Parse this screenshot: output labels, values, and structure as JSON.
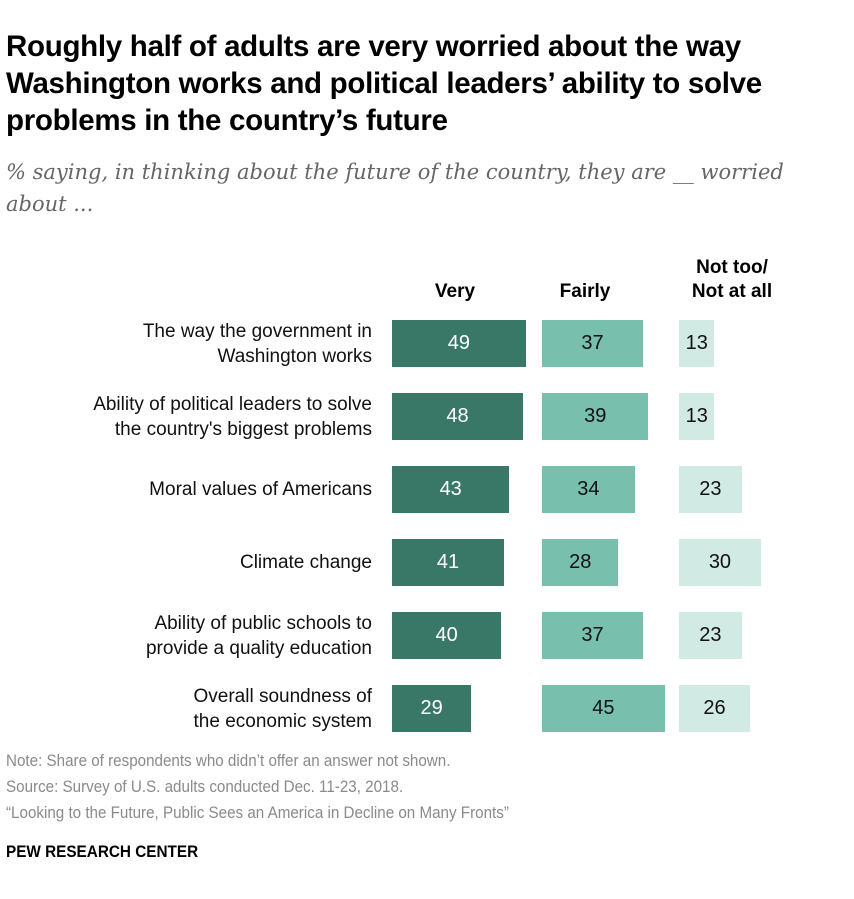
{
  "chart_data": {
    "type": "bar",
    "title": "Roughly half of adults are very worried about the way Washington works and political leaders’ ability to solve problems in the country’s future",
    "subtitle": "% saying, in thinking about the future of the country, they are __ worried about ...",
    "categories": [
      [
        "The way the government in",
        "Washington works"
      ],
      [
        "Ability of political leaders to solve",
        "the country's biggest problems"
      ],
      [
        "Moral values of Americans"
      ],
      [
        "Climate change"
      ],
      [
        "Ability of public schools to",
        "provide a quality education"
      ],
      [
        "Overall soundness of",
        "the economic system"
      ]
    ],
    "series": [
      {
        "name": "Very",
        "name_lines": [
          "Very"
        ],
        "values": [
          49,
          48,
          43,
          41,
          40,
          29
        ],
        "color": "#397867",
        "text_color": "#ffffff"
      },
      {
        "name": "Fairly",
        "name_lines": [
          "Fairly"
        ],
        "values": [
          37,
          39,
          34,
          28,
          37,
          45
        ],
        "color": "#78bfae",
        "text_color": "#111111"
      },
      {
        "name": "Not too/ Not at all",
        "name_lines": [
          "Not too/",
          "Not at all"
        ],
        "values": [
          13,
          13,
          23,
          30,
          23,
          26
        ],
        "color": "#d2eae4",
        "text_color": "#111111"
      }
    ]
  },
  "footer": {
    "note": "Note: Share of respondents who didn’t offer an answer not shown.",
    "source": "Source: Survey of U.S. adults conducted Dec. 11-23, 2018.",
    "report": "“Looking to the Future, Public Sees an America in Decline on Many Fronts”",
    "brand": "PEW RESEARCH CENTER"
  }
}
